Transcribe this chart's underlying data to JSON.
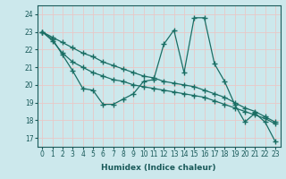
{
  "xlabel": "Humidex (Indice chaleur)",
  "ylabel": "",
  "background_color": "#cce8ec",
  "grid_color": "#e8c8c8",
  "line_color": "#1a6e64",
  "xlim": [
    -0.5,
    23.5
  ],
  "ylim": [
    16.5,
    24.5
  ],
  "yticks": [
    17,
    18,
    19,
    20,
    21,
    22,
    23,
    24
  ],
  "xticks": [
    0,
    1,
    2,
    3,
    4,
    5,
    6,
    7,
    8,
    9,
    10,
    11,
    12,
    13,
    14,
    15,
    16,
    17,
    18,
    19,
    20,
    21,
    22,
    23
  ],
  "line1_x": [
    0,
    1,
    2,
    3,
    4,
    5,
    6,
    7,
    8,
    9,
    10,
    11,
    12,
    13,
    14,
    15,
    16,
    17,
    18,
    19,
    20,
    21,
    22,
    23
  ],
  "line1_y": [
    23.0,
    22.6,
    21.7,
    20.8,
    19.8,
    19.7,
    18.9,
    18.9,
    19.2,
    19.5,
    20.2,
    20.3,
    22.3,
    23.1,
    20.7,
    23.8,
    23.8,
    21.2,
    20.2,
    18.9,
    17.9,
    18.4,
    17.9,
    16.8
  ],
  "line2_x": [
    0,
    1,
    2,
    3,
    4,
    5,
    6,
    7,
    8,
    9,
    10,
    11,
    12,
    13,
    14,
    15,
    16,
    17,
    18,
    19,
    20,
    21,
    22,
    23
  ],
  "line2_y": [
    23.0,
    22.5,
    21.8,
    21.3,
    21.0,
    20.7,
    20.5,
    20.3,
    20.2,
    20.0,
    19.9,
    19.8,
    19.7,
    19.6,
    19.5,
    19.4,
    19.3,
    19.1,
    18.9,
    18.7,
    18.5,
    18.3,
    18.1,
    17.8
  ],
  "line3_x": [
    0,
    1,
    2,
    3,
    4,
    5,
    6,
    7,
    8,
    9,
    10,
    11,
    12,
    13,
    14,
    15,
    16,
    17,
    18,
    19,
    20,
    21,
    22,
    23
  ],
  "line3_y": [
    23.0,
    22.7,
    22.4,
    22.1,
    21.8,
    21.6,
    21.3,
    21.1,
    20.9,
    20.7,
    20.5,
    20.4,
    20.2,
    20.1,
    20.0,
    19.9,
    19.7,
    19.5,
    19.3,
    19.0,
    18.7,
    18.5,
    18.2,
    17.9
  ],
  "label_color": "#1a5a5a",
  "tick_fontsize": 5.5,
  "xlabel_fontsize": 6.5
}
